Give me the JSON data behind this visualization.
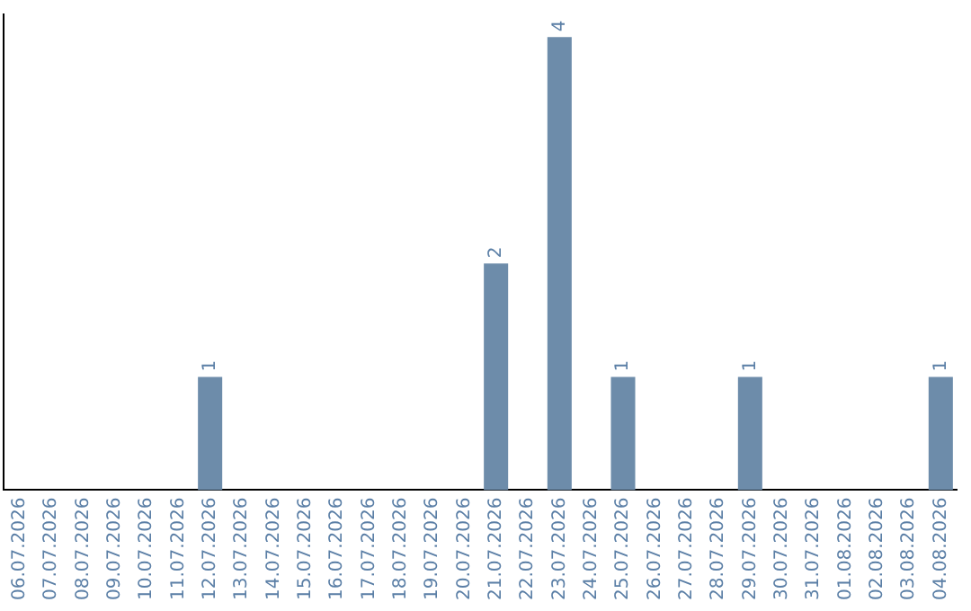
{
  "chart_data": {
    "type": "bar",
    "categories": [
      "06.07.2026",
      "07.07.2026",
      "08.07.2026",
      "09.07.2026",
      "10.07.2026",
      "11.07.2026",
      "12.07.2026",
      "13.07.2026",
      "14.07.2026",
      "15.07.2026",
      "16.07.2026",
      "17.07.2026",
      "18.07.2026",
      "19.07.2026",
      "20.07.2026",
      "21.07.2026",
      "22.07.2026",
      "23.07.2026",
      "24.07.2026",
      "25.07.2026",
      "26.07.2026",
      "27.07.2026",
      "28.07.2026",
      "29.07.2026",
      "30.07.2026",
      "31.07.2026",
      "01.08.2026",
      "02.08.2026",
      "03.08.2026",
      "04.08.2026"
    ],
    "values": [
      0,
      0,
      0,
      0,
      0,
      0,
      1,
      0,
      0,
      0,
      0,
      0,
      0,
      0,
      0,
      2,
      0,
      4,
      0,
      1,
      0,
      0,
      0,
      1,
      0,
      0,
      0,
      0,
      0,
      1
    ],
    "value_labels": [
      null,
      null,
      null,
      null,
      null,
      null,
      "1",
      null,
      null,
      null,
      null,
      null,
      null,
      null,
      null,
      "2",
      null,
      "4",
      null,
      "1",
      null,
      null,
      null,
      "1",
      null,
      null,
      null,
      null,
      null,
      "1"
    ],
    "color": "#6d8caa",
    "ylim": [
      0,
      4.2
    ],
    "tick_labels": "x",
    "grid": false,
    "legend": false
  }
}
